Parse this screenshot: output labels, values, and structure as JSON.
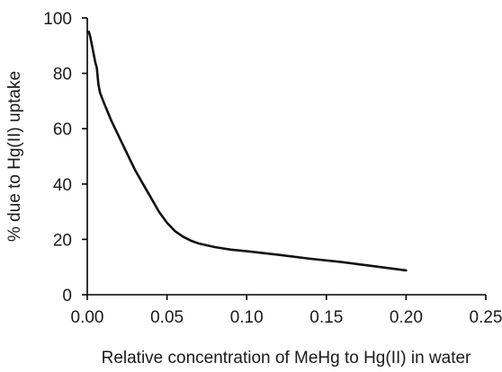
{
  "chart_data": {
    "type": "line",
    "title": "",
    "xlabel": "Relative concentration of MeHg to Hg(II) in water",
    "ylabel": "% due to Hg(II) uptake",
    "xlim": [
      0,
      0.25
    ],
    "ylim": [
      0,
      100
    ],
    "grid": false,
    "legend": "none",
    "x_ticks": [
      "0.00",
      "0.05",
      "0.10",
      "0.15",
      "0.20",
      "0.25"
    ],
    "y_ticks": [
      "0",
      "20",
      "40",
      "60",
      "80",
      "100"
    ],
    "x_tick_values": [
      0,
      0.05,
      0.1,
      0.15,
      0.2,
      0.25
    ],
    "y_tick_values": [
      0,
      20,
      40,
      60,
      80,
      100
    ],
    "series": [
      {
        "color": "#111111",
        "x": [
          0.001,
          0.002,
          0.003,
          0.004,
          0.005,
          0.006,
          0.007,
          0.008,
          0.01,
          0.015,
          0.02,
          0.025,
          0.03,
          0.035,
          0.04,
          0.045,
          0.05,
          0.055,
          0.06,
          0.065,
          0.07,
          0.08,
          0.09,
          0.1,
          0.12,
          0.14,
          0.16,
          0.18,
          0.2
        ],
        "y": [
          95,
          93,
          90,
          87,
          84,
          82,
          76,
          73,
          70,
          63,
          57,
          51,
          45,
          40,
          35,
          30,
          26,
          23,
          21,
          19.5,
          18.5,
          17.2,
          16.3,
          15.7,
          14.4,
          13.0,
          11.8,
          10.3,
          8.8
        ]
      }
    ]
  }
}
